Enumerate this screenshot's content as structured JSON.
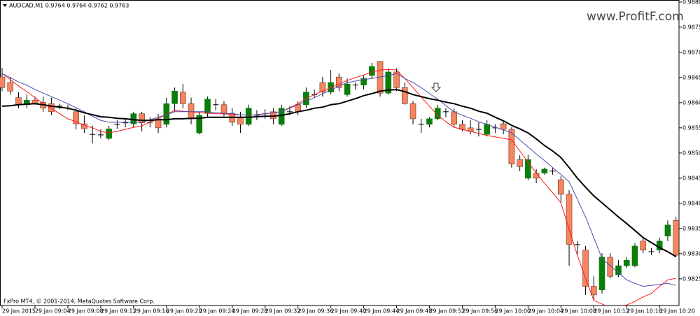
{
  "chart_data": {
    "type": "candlestick",
    "title": "AUDCAD,M1 0.9764 0.9764 0.9762 0.9763",
    "watermark": "www.ProfitF.com",
    "footer": "FxPro MT4, © 2001-2014, MetaQuotes Software Corp.",
    "categories": [
      "29 Jan 2015",
      null,
      null,
      null,
      "29 Jan 09:04",
      null,
      null,
      null,
      "29 Jan 09:08",
      null,
      null,
      null,
      "29 Jan 09:12",
      null,
      null,
      null,
      "29 Jan 09:16",
      null,
      null,
      null,
      "29 Jan 09:20",
      null,
      null,
      null,
      "29 Jan 09:24",
      null,
      null,
      null,
      "29 Jan 09:28",
      null,
      null,
      null,
      "29 Jan 09:32",
      null,
      null,
      null,
      "29 Jan 09:36",
      null,
      null,
      null,
      "29 Jan 09:40",
      null,
      null,
      null,
      "29 Jan 09:44",
      null,
      null,
      null,
      "29 Jan 09:48",
      null,
      null,
      null,
      "29 Jan 09:52",
      null,
      null,
      null,
      "29 Jan 09:56",
      null,
      null,
      null,
      "29 Jan 10:00",
      null,
      null,
      null,
      "29 Jan 10:04",
      null,
      null,
      null,
      "29 Jan 10:08",
      null,
      null,
      null,
      "29 Jan 10:12",
      null,
      null,
      null,
      "29 Jan 10:16",
      null,
      null,
      null,
      "29 Jan 10:20",
      null,
      null
    ],
    "open": [
      0.98651,
      0.9864,
      0.9861,
      0.98596,
      0.98605,
      0.98601,
      0.98598,
      0.98593,
      0.98589,
      0.98582,
      0.98558,
      0.98537,
      0.98536,
      0.98529,
      0.98557,
      0.9856,
      0.98558,
      0.98578,
      0.98561,
      0.98568,
      0.98557,
      0.98598,
      0.98621,
      0.98598,
      0.9854,
      0.98579,
      0.98596,
      0.98596,
      0.98579,
      0.98571,
      0.98557,
      0.98575,
      0.98578,
      0.98582,
      0.98557,
      0.98582,
      0.98596,
      0.98596,
      0.98616,
      0.9864,
      0.98621,
      0.98651,
      0.98616,
      0.98635,
      0.98635,
      0.98654,
      0.98682,
      0.98619,
      0.98661,
      0.9863,
      0.98598,
      0.98557,
      0.98557,
      0.98568,
      0.98582,
      0.98582,
      0.98557,
      0.9855,
      0.98547,
      0.98537,
      0.9855,
      0.98558,
      0.98547,
      0.98487,
      0.9845,
      0.9846,
      0.9846,
      0.98464,
      0.98447,
      0.98418,
      0.98318,
      0.98307,
      0.98235,
      0.98228,
      0.98293,
      0.98258,
      0.98276,
      0.98276,
      0.98325,
      0.98304,
      0.98307,
      0.98335,
      0.98366
    ],
    "high": [
      0.98669,
      0.98651,
      0.98621,
      0.98616,
      0.98612,
      0.98612,
      0.9861,
      0.98598,
      0.98596,
      0.98589,
      0.98575,
      0.98554,
      0.98547,
      0.98554,
      0.98565,
      0.98568,
      0.98582,
      0.98582,
      0.98571,
      0.98578,
      0.9861,
      0.9863,
      0.98637,
      0.9861,
      0.98582,
      0.98612,
      0.98607,
      0.98603,
      0.98589,
      0.98582,
      0.98596,
      0.98585,
      0.98587,
      0.98589,
      0.98596,
      0.98593,
      0.98603,
      0.9863,
      0.98626,
      0.98651,
      0.98665,
      0.98658,
      0.98648,
      0.9864,
      0.98654,
      0.98679,
      0.98682,
      0.98668,
      0.98668,
      0.9864,
      0.98603,
      0.98568,
      0.98571,
      0.98596,
      0.98589,
      0.98589,
      0.98565,
      0.98565,
      0.98561,
      0.98565,
      0.98557,
      0.98565,
      0.98551,
      0.98496,
      0.98496,
      0.98468,
      0.98471,
      0.98471,
      0.98454,
      0.98426,
      0.98325,
      0.98315,
      0.98255,
      0.98301,
      0.98301,
      0.98287,
      0.98293,
      0.98321,
      0.98332,
      0.98311,
      0.98332,
      0.98366,
      0.98373
    ],
    "low": [
      0.98623,
      0.98616,
      0.98589,
      0.98589,
      0.98596,
      0.98582,
      0.98575,
      0.98587,
      0.98585,
      0.98547,
      0.9854,
      0.98519,
      0.98529,
      0.98526,
      0.98548,
      0.98551,
      0.98551,
      0.98543,
      0.98551,
      0.9854,
      0.98551,
      0.98582,
      0.98589,
      0.98557,
      0.98537,
      0.98571,
      0.98585,
      0.98573,
      0.98554,
      0.9854,
      0.98554,
      0.98565,
      0.98568,
      0.98557,
      0.98554,
      0.98575,
      0.98575,
      0.98589,
      0.9861,
      0.98612,
      0.98616,
      0.98623,
      0.98612,
      0.98626,
      0.98626,
      0.98648,
      0.98612,
      0.98616,
      0.98623,
      0.98596,
      0.98557,
      0.9854,
      0.98551,
      0.98565,
      0.98571,
      0.98551,
      0.98543,
      0.98537,
      0.98533,
      0.98533,
      0.9854,
      0.98537,
      0.98471,
      0.98464,
      0.98446,
      0.9844,
      0.98457,
      0.98457,
      0.98401,
      0.98276,
      0.98297,
      0.98218,
      0.98207,
      0.98221,
      0.98251,
      0.98254,
      0.98271,
      0.98273,
      0.98301,
      0.98297,
      0.98301,
      0.98325,
      0.98293
    ],
    "close": [
      0.9863,
      0.98623,
      0.98596,
      0.98605,
      0.98598,
      0.98589,
      0.98582,
      0.98593,
      0.98589,
      0.98558,
      0.98548,
      0.98537,
      0.98536,
      0.98548,
      0.98557,
      0.9856,
      0.98578,
      0.9856,
      0.98561,
      0.9855,
      0.98598,
      0.98623,
      0.98598,
      0.98568,
      0.98575,
      0.98607,
      0.98596,
      0.98579,
      0.98561,
      0.98557,
      0.98589,
      0.98575,
      0.98578,
      0.98568,
      0.98589,
      0.98582,
      0.98582,
      0.98621,
      0.98616,
      0.98621,
      0.9864,
      0.9863,
      0.98637,
      0.98635,
      0.98648,
      0.98672,
      0.98619,
      0.98661,
      0.9863,
      0.98598,
      0.98568,
      0.98557,
      0.98568,
      0.98589,
      0.98582,
      0.98557,
      0.98547,
      0.98543,
      0.98547,
      0.98557,
      0.9855,
      0.98547,
      0.98478,
      0.98473,
      0.98487,
      0.9845,
      0.98468,
      0.98464,
      0.98418,
      0.98318,
      0.98318,
      0.98235,
      0.98218,
      0.98293,
      0.98255,
      0.98276,
      0.98287,
      0.98315,
      0.98307,
      0.98304,
      0.98325,
      0.98357,
      0.98297
    ],
    "up_color": "#0b7d0b",
    "down_color": "#f6845e",
    "wick_color": "#000000",
    "lines": [
      {
        "color": "#ff1a1a",
        "width": 1,
        "values": [
          0.98658,
          0.98646,
          0.98633,
          0.98622,
          0.9861,
          0.98598,
          0.98589,
          0.98578,
          0.98568,
          0.98562,
          0.98555,
          0.9855,
          0.98543,
          0.9854,
          0.98543,
          0.98547,
          0.98551,
          0.98554,
          0.98561,
          0.98569,
          0.98576,
          0.98585,
          0.98583,
          0.98582,
          0.9858,
          0.98579,
          0.98578,
          0.98578,
          0.98576,
          0.98576,
          0.98575,
          0.98576,
          0.98578,
          0.9858,
          0.98582,
          0.9859,
          0.98598,
          0.98608,
          0.98616,
          0.98623,
          0.9863,
          0.98637,
          0.98644,
          0.9865,
          0.98655,
          0.98661,
          0.98665,
          0.98666,
          0.98665,
          0.98648,
          0.9863,
          0.98611,
          0.98593,
          0.98575,
          0.98562,
          0.98551,
          0.98547,
          0.98543,
          0.98539,
          0.98535,
          0.98532,
          0.98529,
          0.98526,
          0.98504,
          0.98482,
          0.9846,
          0.9844,
          0.98421,
          0.98401,
          0.98348,
          0.98297,
          0.98251,
          0.98207,
          0.982,
          0.98193,
          0.98196,
          0.98198,
          0.98205,
          0.98214,
          0.98221,
          0.98235,
          0.98248,
          0.98251
        ]
      },
      {
        "color": "#4b4bb0",
        "width": 1,
        "values": [
          0.98658,
          0.9865,
          0.98641,
          0.98635,
          0.98626,
          0.98619,
          0.98612,
          0.98605,
          0.98598,
          0.9859,
          0.98582,
          0.98573,
          0.98565,
          0.98561,
          0.98561,
          0.98561,
          0.98561,
          0.98561,
          0.98566,
          0.98571,
          0.98576,
          0.98582,
          0.98582,
          0.98582,
          0.98582,
          0.98582,
          0.9858,
          0.98579,
          0.98578,
          0.98576,
          0.98575,
          0.98576,
          0.98578,
          0.9858,
          0.98582,
          0.98589,
          0.98596,
          0.98603,
          0.9861,
          0.98618,
          0.98625,
          0.98633,
          0.9864,
          0.98643,
          0.98646,
          0.98648,
          0.98651,
          0.98654,
          0.98658,
          0.98648,
          0.9864,
          0.9863,
          0.98618,
          0.98607,
          0.98594,
          0.98582,
          0.98575,
          0.98569,
          0.98562,
          0.98557,
          0.98551,
          0.98546,
          0.9854,
          0.98526,
          0.98512,
          0.98498,
          0.98485,
          0.98471,
          0.98457,
          0.98443,
          0.98408,
          0.98373,
          0.98332,
          0.9829,
          0.98276,
          0.98262,
          0.98248,
          0.98241,
          0.98235,
          0.98237,
          0.98239,
          0.98241,
          0.98237
        ]
      },
      {
        "color": "#000000",
        "width": 2,
        "values": [
          0.98593,
          0.98594,
          0.98596,
          0.98597,
          0.98598,
          0.98596,
          0.98593,
          0.98591,
          0.98589,
          0.98585,
          0.9858,
          0.98576,
          0.98572,
          0.98571,
          0.98569,
          0.98568,
          0.98566,
          0.98565,
          0.98565,
          0.98566,
          0.98566,
          0.98568,
          0.98568,
          0.98569,
          0.98569,
          0.98571,
          0.98571,
          0.98571,
          0.98571,
          0.98571,
          0.98571,
          0.98572,
          0.98573,
          0.98573,
          0.98575,
          0.98578,
          0.98582,
          0.98585,
          0.98589,
          0.98591,
          0.98596,
          0.98598,
          0.98603,
          0.98608,
          0.98614,
          0.98618,
          0.98623,
          0.98625,
          0.98626,
          0.98622,
          0.98616,
          0.98612,
          0.98608,
          0.98605,
          0.98601,
          0.98598,
          0.98593,
          0.98589,
          0.98583,
          0.98579,
          0.98571,
          0.98564,
          0.98555,
          0.98548,
          0.9854,
          0.98528,
          0.98515,
          0.98504,
          0.98491,
          0.98471,
          0.9845,
          0.98432,
          0.98415,
          0.98401,
          0.98387,
          0.98373,
          0.9836,
          0.98346,
          0.98332,
          0.98322,
          0.98312,
          0.98304,
          0.98294
        ]
      }
    ],
    "ylim": [
      0.98197,
      0.98804
    ],
    "yticks": [
      {
        "value": 0.988,
        "label": "0.9880"
      },
      0.9875,
      {
        "value": 0.987,
        "label": "0.9870"
      },
      0.9865,
      {
        "value": 0.986,
        "label": "0.9860"
      },
      0.9855,
      {
        "value": 0.985,
        "label": "0.9850"
      },
      0.9845,
      {
        "value": 0.984,
        "label": "0.9840"
      },
      0.9835,
      {
        "value": 0.983,
        "label": "0.9830"
      },
      0.9825
    ]
  }
}
